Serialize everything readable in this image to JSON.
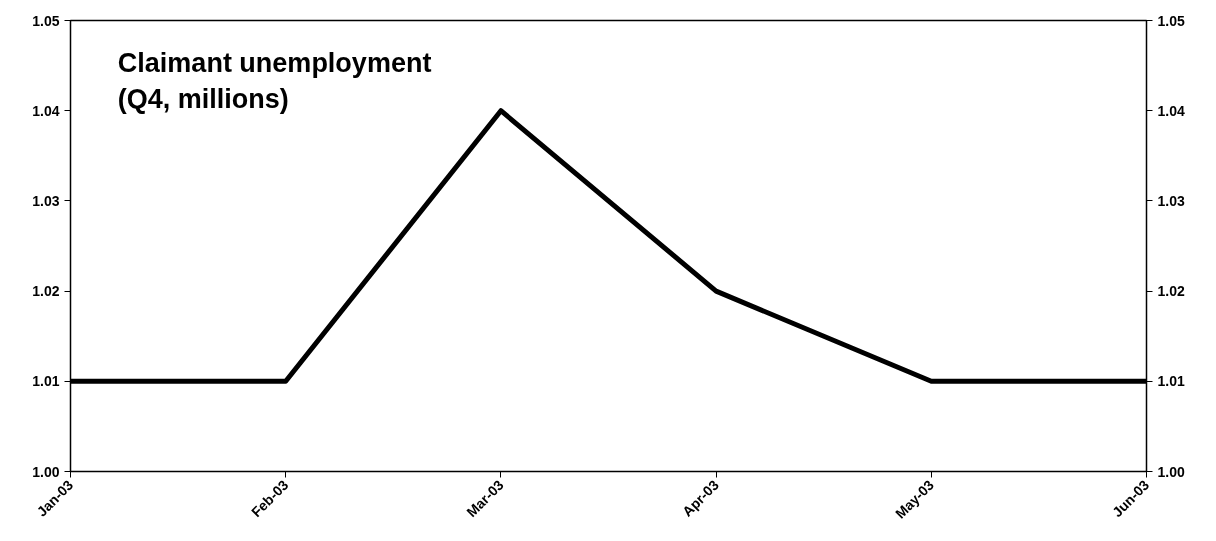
{
  "chart_data": {
    "type": "line",
    "title": "Claimant unemployment\n(Q4, millions)",
    "categories": [
      "Jan-03",
      "Feb-03",
      "Mar-03",
      "Apr-03",
      "May-03",
      "Jun-03"
    ],
    "series": [
      {
        "color": "#000000",
        "values": [
          1.01,
          1.01,
          1.04,
          1.02,
          1.01,
          1.01
        ]
      }
    ],
    "ylim": [
      1.0,
      1.05
    ],
    "yticks": [
      {
        "value": 1.0,
        "label": "1.00"
      },
      {
        "value": 1.01,
        "label": "1.01"
      },
      {
        "value": 1.02,
        "label": "1.02"
      },
      {
        "value": 1.03,
        "label": "1.03"
      },
      {
        "value": 1.04,
        "label": "1.04"
      },
      {
        "value": 1.05,
        "label": "1.05"
      }
    ],
    "y2lim": [
      1.0,
      1.05
    ],
    "y2ticks": [
      {
        "value": 1.0,
        "label": "1.00"
      },
      {
        "value": 1.01,
        "label": "1.01"
      },
      {
        "value": 1.02,
        "label": "1.02"
      },
      {
        "value": 1.03,
        "label": "1.03"
      },
      {
        "value": 1.04,
        "label": "1.04"
      },
      {
        "value": 1.05,
        "label": "1.05"
      }
    ],
    "grid": false,
    "marker": "none",
    "line_style": "solid"
  }
}
